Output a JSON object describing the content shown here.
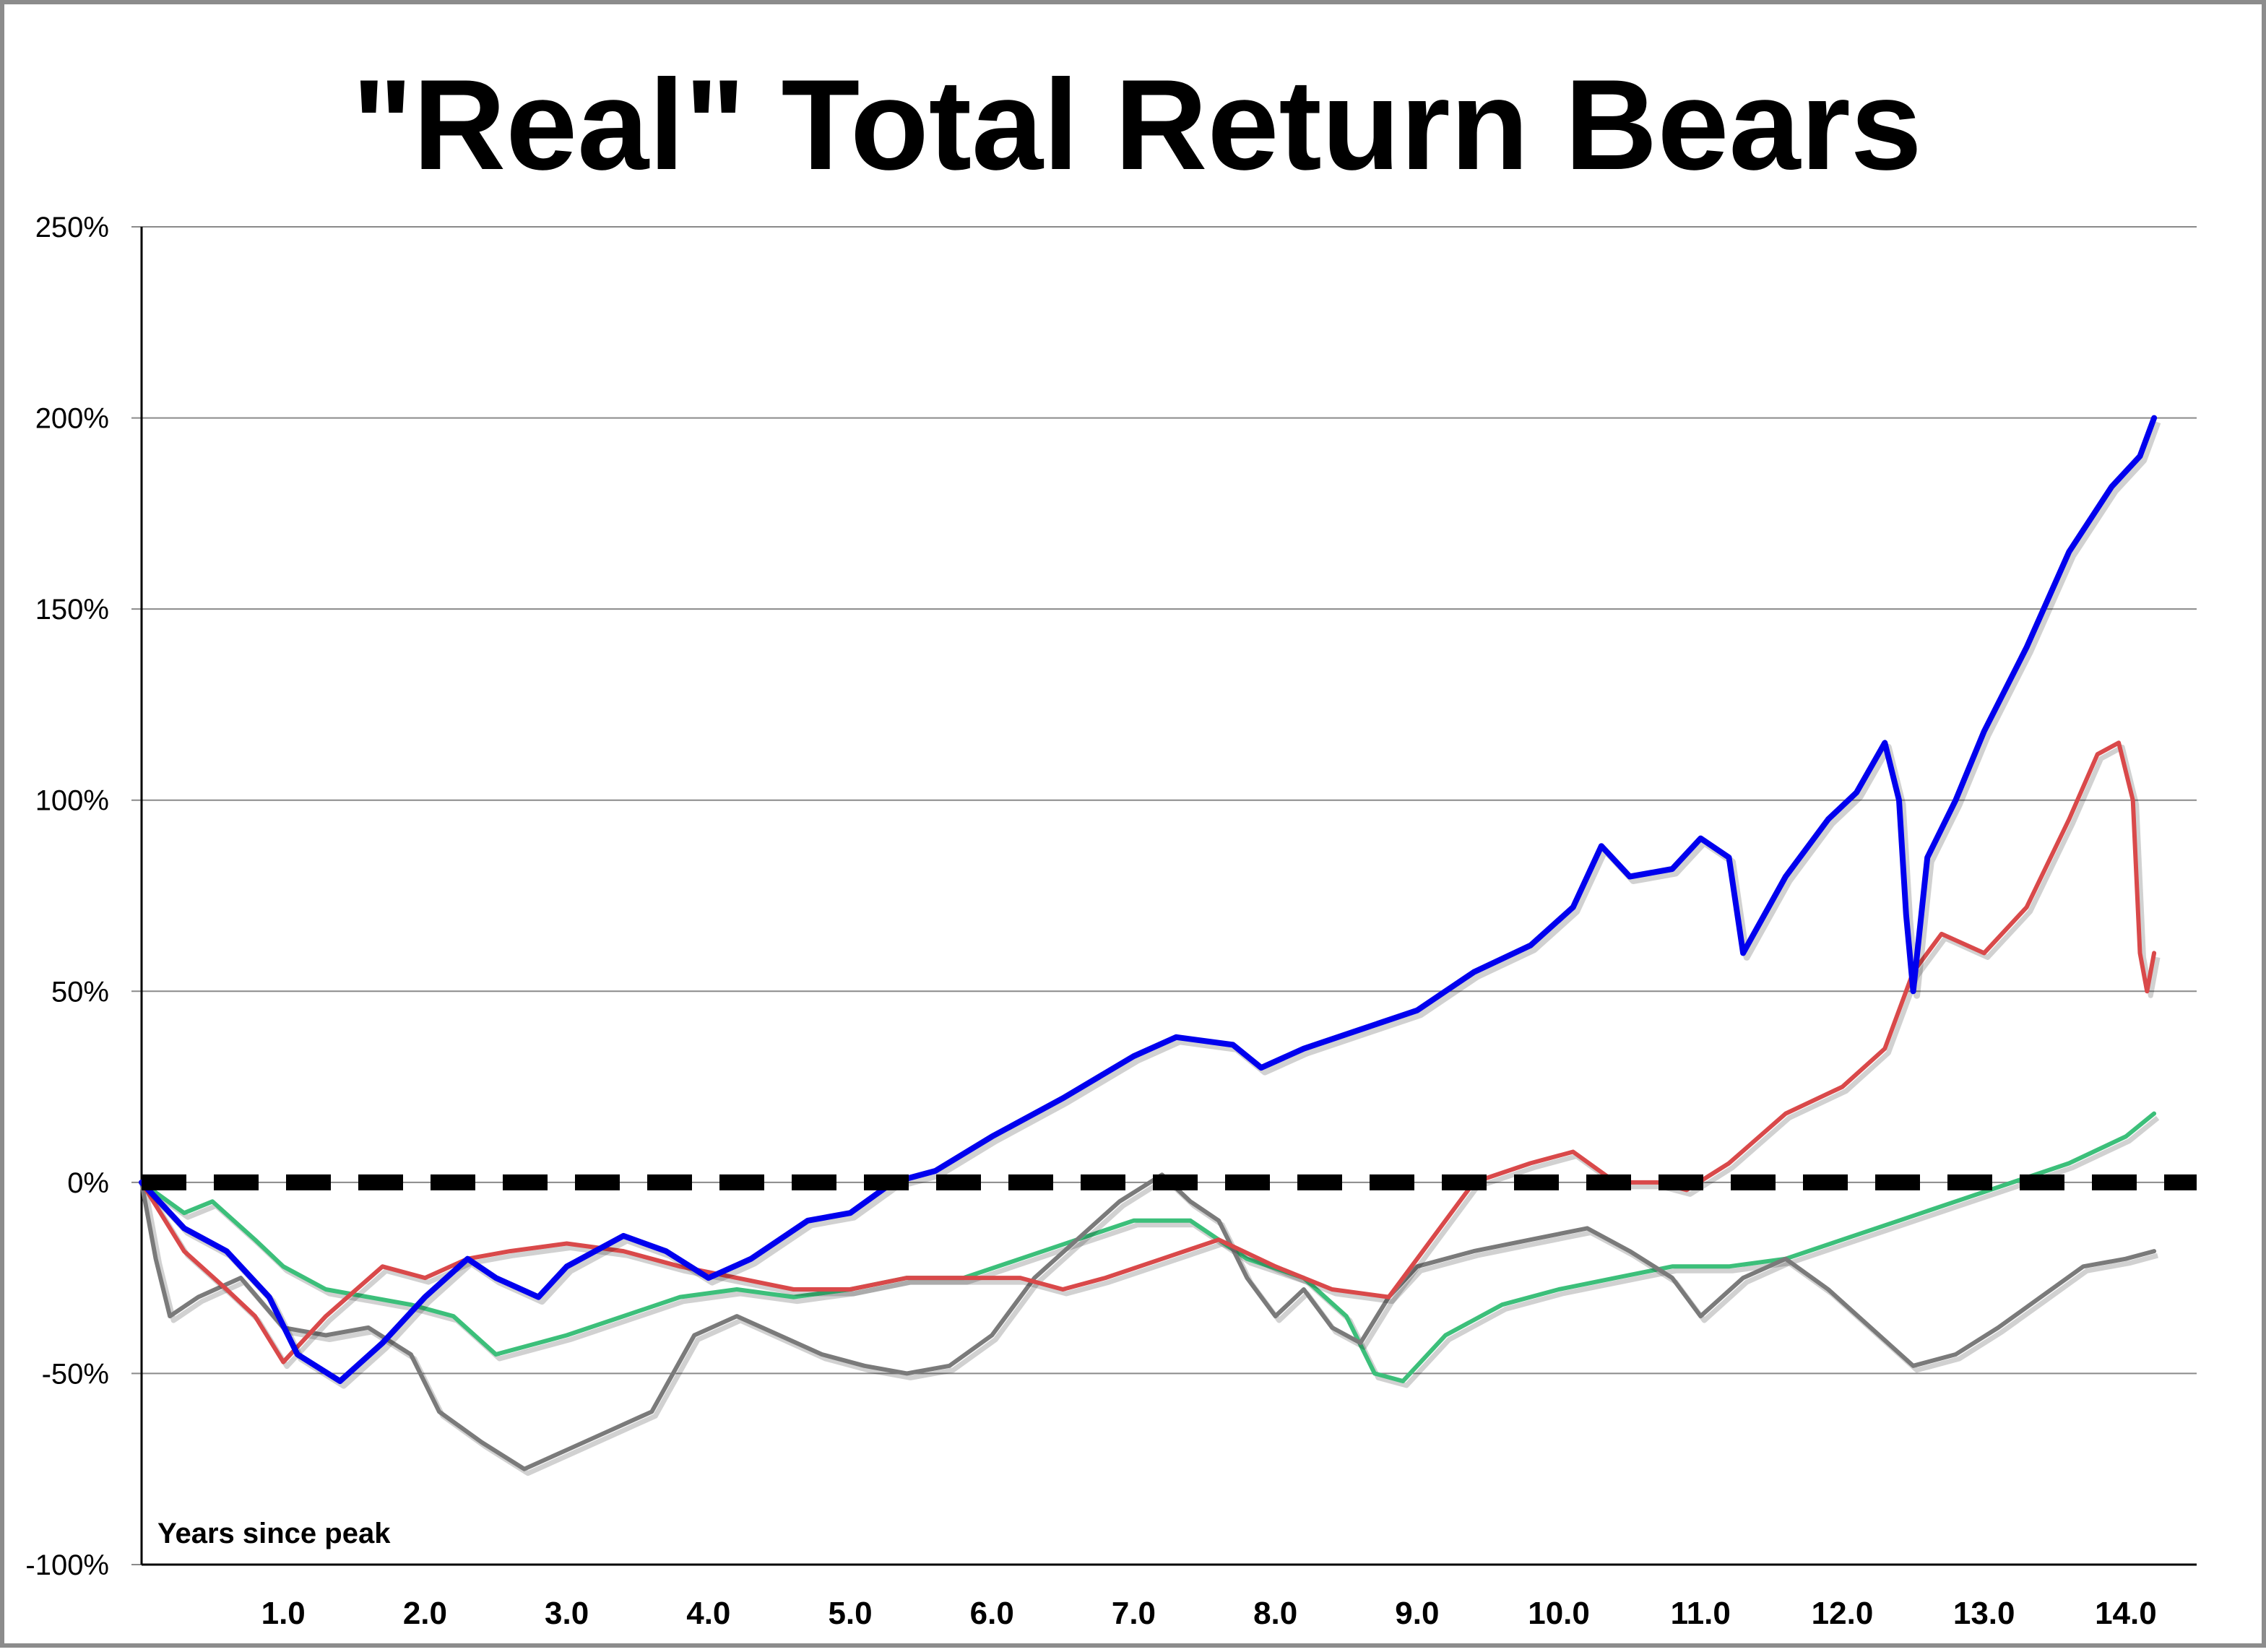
{
  "chart_data": {
    "type": "line",
    "title": "\"Real\" Total Return Bears",
    "xlabel": "Years since peak",
    "ylabel": "",
    "xlim": [
      0,
      14.5
    ],
    "ylim": [
      -100,
      250
    ],
    "x_ticks": [
      1.0,
      2.0,
      3.0,
      4.0,
      5.0,
      6.0,
      7.0,
      8.0,
      9.0,
      10.0,
      11.0,
      12.0,
      13.0,
      14.0
    ],
    "x_tick_labels": [
      "1.0",
      "2.0",
      "3.0",
      "4.0",
      "5.0",
      "6.0",
      "7.0",
      "8.0",
      "9.0",
      "10.0",
      "11.0",
      "12.0",
      "13.0",
      "14.0"
    ],
    "y_ticks": [
      -100,
      -50,
      0,
      50,
      100,
      150,
      200,
      250
    ],
    "y_tick_labels": [
      "-100%",
      "-50%",
      "0%",
      "50%",
      "100%",
      "150%",
      "200%",
      "250%"
    ],
    "grid": "horizontal",
    "legend": "none",
    "reference_line": {
      "y": 0,
      "style": "dashed",
      "color": "#000000"
    },
    "series": [
      {
        "color": "#0000ee",
        "x": [
          0,
          0.3,
          0.6,
          0.9,
          1.1,
          1.4,
          1.7,
          2.0,
          2.3,
          2.5,
          2.8,
          3.0,
          3.4,
          3.7,
          4.0,
          4.3,
          4.7,
          5.0,
          5.3,
          5.6,
          6.0,
          6.5,
          7.0,
          7.3,
          7.7,
          7.9,
          8.2,
          8.6,
          9.0,
          9.4,
          9.8,
          10.1,
          10.3,
          10.5,
          10.8,
          11.0,
          11.2,
          11.3,
          11.6,
          11.9,
          12.1,
          12.3,
          12.4,
          12.45,
          12.5,
          12.6,
          12.8,
          13.0,
          13.3,
          13.6,
          13.9,
          14.1,
          14.2
        ],
        "y": [
          0,
          -12,
          -18,
          -30,
          -45,
          -52,
          -42,
          -30,
          -20,
          -25,
          -30,
          -22,
          -14,
          -18,
          -25,
          -20,
          -10,
          -8,
          0,
          3,
          12,
          22,
          33,
          38,
          36,
          30,
          35,
          40,
          45,
          55,
          62,
          72,
          88,
          80,
          82,
          90,
          85,
          60,
          80,
          95,
          102,
          115,
          100,
          70,
          50,
          85,
          100,
          118,
          140,
          165,
          182,
          190,
          200
        ]
      },
      {
        "color": "#d9494a",
        "x": [
          0,
          0.3,
          0.6,
          0.8,
          1.0,
          1.3,
          1.7,
          2.0,
          2.3,
          2.6,
          3.0,
          3.4,
          3.8,
          4.2,
          4.6,
          5.0,
          5.4,
          5.8,
          6.2,
          6.5,
          6.8,
          7.2,
          7.6,
          8.0,
          8.4,
          8.8,
          9.0,
          9.4,
          9.8,
          10.1,
          10.4,
          10.7,
          10.9,
          11.2,
          11.6,
          12.0,
          12.3,
          12.5,
          12.7,
          13.0,
          13.3,
          13.6,
          13.8,
          13.95,
          14.05,
          14.1,
          14.15,
          14.2
        ],
        "y": [
          0,
          -18,
          -28,
          -35,
          -47,
          -35,
          -22,
          -25,
          -20,
          -18,
          -16,
          -18,
          -22,
          -25,
          -28,
          -28,
          -25,
          -25,
          -25,
          -28,
          -25,
          -20,
          -15,
          -22,
          -28,
          -30,
          -20,
          0,
          5,
          8,
          0,
          0,
          -2,
          5,
          18,
          25,
          35,
          55,
          65,
          60,
          72,
          95,
          112,
          115,
          100,
          60,
          50,
          60
        ]
      },
      {
        "color": "#3cbf7a",
        "x": [
          0,
          0.3,
          0.5,
          0.8,
          1.0,
          1.3,
          1.6,
          1.9,
          2.2,
          2.5,
          2.8,
          3.0,
          3.4,
          3.8,
          4.2,
          4.6,
          5.0,
          5.4,
          5.8,
          6.2,
          6.6,
          7.0,
          7.4,
          7.8,
          8.2,
          8.5,
          8.7,
          8.9,
          9.2,
          9.6,
          10.0,
          10.4,
          10.8,
          11.2,
          11.6,
          12.0,
          12.4,
          12.8,
          13.2,
          13.6,
          14.0,
          14.2
        ],
        "y": [
          0,
          -8,
          -5,
          -15,
          -22,
          -28,
          -30,
          -32,
          -35,
          -45,
          -42,
          -40,
          -35,
          -30,
          -28,
          -30,
          -28,
          -25,
          -25,
          -20,
          -15,
          -10,
          -10,
          -20,
          -25,
          -35,
          -50,
          -52,
          -40,
          -32,
          -28,
          -25,
          -22,
          -22,
          -20,
          -15,
          -10,
          -5,
          0,
          5,
          12,
          18
        ]
      },
      {
        "color": "#7a7a7a",
        "x": [
          0,
          0.1,
          0.2,
          0.4,
          0.7,
          1.0,
          1.3,
          1.6,
          1.9,
          2.1,
          2.4,
          2.7,
          3.0,
          3.3,
          3.6,
          3.9,
          4.2,
          4.5,
          4.8,
          5.1,
          5.4,
          5.7,
          6.0,
          6.3,
          6.6,
          6.9,
          7.2,
          7.4,
          7.6,
          7.8,
          8.0,
          8.2,
          8.4,
          8.6,
          8.8,
          9.0,
          9.4,
          9.8,
          10.2,
          10.5,
          10.8,
          11.0,
          11.3,
          11.6,
          11.9,
          12.2,
          12.5,
          12.8,
          13.1,
          13.4,
          13.7,
          14.0,
          14.2
        ],
        "y": [
          0,
          -20,
          -35,
          -30,
          -25,
          -38,
          -40,
          -38,
          -45,
          -60,
          -68,
          -75,
          -70,
          -65,
          -60,
          -40,
          -35,
          -40,
          -45,
          -48,
          -50,
          -48,
          -40,
          -25,
          -15,
          -5,
          2,
          -5,
          -10,
          -25,
          -35,
          -28,
          -38,
          -42,
          -30,
          -22,
          -18,
          -15,
          -12,
          -18,
          -25,
          -35,
          -25,
          -20,
          -28,
          -38,
          -48,
          -45,
          -38,
          -30,
          -22,
          -20,
          -18
        ]
      }
    ]
  }
}
